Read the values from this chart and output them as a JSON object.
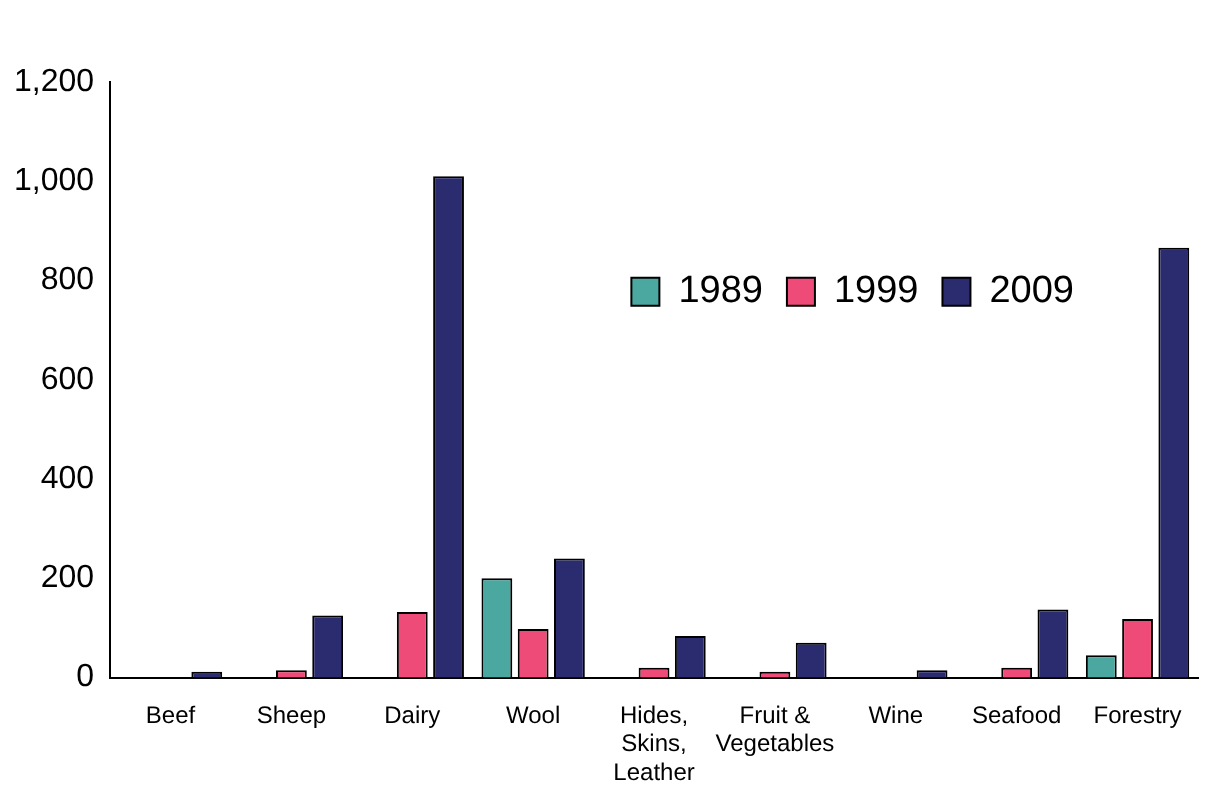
{
  "chart_data": {
    "type": "bar",
    "categories": [
      "Beef",
      "Sheep",
      "Dairy",
      "Wool",
      "Hides, Skins, Leather",
      "Fruit & Vegetables",
      "Wine",
      "Seafood",
      "Forestry"
    ],
    "series": [
      {
        "name": "1989",
        "color": "#4aa8a0",
        "values": [
          null,
          null,
          null,
          200,
          null,
          null,
          null,
          null,
          45
        ]
      },
      {
        "name": "1999",
        "color": "#ee4b78",
        "values": [
          null,
          15,
          132,
          98,
          20,
          12,
          null,
          20,
          118
        ]
      },
      {
        "name": "2009",
        "color": "#2b2b6f",
        "values": [
          12,
          125,
          1010,
          240,
          84,
          70,
          15,
          137,
          866
        ]
      }
    ],
    "ylim": [
      0,
      1200
    ],
    "yticks": [
      0,
      200,
      400,
      600,
      800,
      {
        "value": 1000,
        "label": "1,000"
      },
      {
        "value": 1200,
        "label": "1,200"
      }
    ],
    "grid": false,
    "legend": "top right"
  }
}
